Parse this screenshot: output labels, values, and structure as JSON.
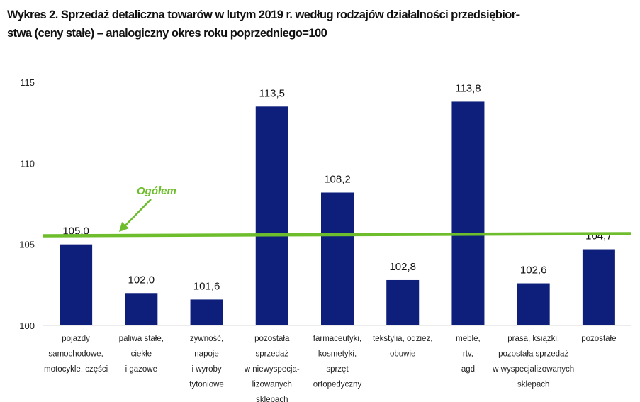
{
  "chart_data": {
    "type": "bar",
    "title_line1": "Wykres 2. Sprzedaż detaliczna towarów w lutym 2019 r. według rodzajów działalności przedsiębior-",
    "title_line2": "stwa (ceny stałe) – analogiczny okres roku poprzedniego=100",
    "xlabel": "",
    "ylabel": "",
    "ylim": [
      100,
      115
    ],
    "yticks": [
      "100",
      "105",
      "110",
      "115"
    ],
    "grid": false,
    "categories": [
      [
        "pojazdy",
        "samochodowe,",
        "motocykle, części"
      ],
      [
        "paliwa stałe,",
        "ciekłe",
        "i gazowe"
      ],
      [
        "żywność,",
        "napoje",
        "i wyroby",
        "tytoniowe"
      ],
      [
        "pozostała",
        "sprzedaż",
        "w niewyspecja-",
        "lizowanych",
        "sklepach"
      ],
      [
        "farmaceutyki,",
        "kosmetyki,",
        "sprzęt",
        "ortopedyczny"
      ],
      [
        "tekstylia, odzież,",
        "obuwie"
      ],
      [
        "meble,",
        "rtv,",
        "agd"
      ],
      [
        "prasa, książki,",
        "pozostała sprzedaż",
        "w wyspecjalizowanych",
        "sklepach"
      ],
      [
        "pozostałe"
      ]
    ],
    "values": [
      105.0,
      102.0,
      101.6,
      113.5,
      108.2,
      102.8,
      113.8,
      102.6,
      104.7
    ],
    "value_labels": [
      "105,0",
      "102,0",
      "101,6",
      "113,5",
      "108,2",
      "102,8",
      "113,8",
      "102,6",
      "104,7"
    ],
    "bar_color": "#0d1f7a",
    "reference_line": {
      "label": "Ogółem",
      "value": 105.6,
      "color": "#6ebd2d"
    }
  }
}
